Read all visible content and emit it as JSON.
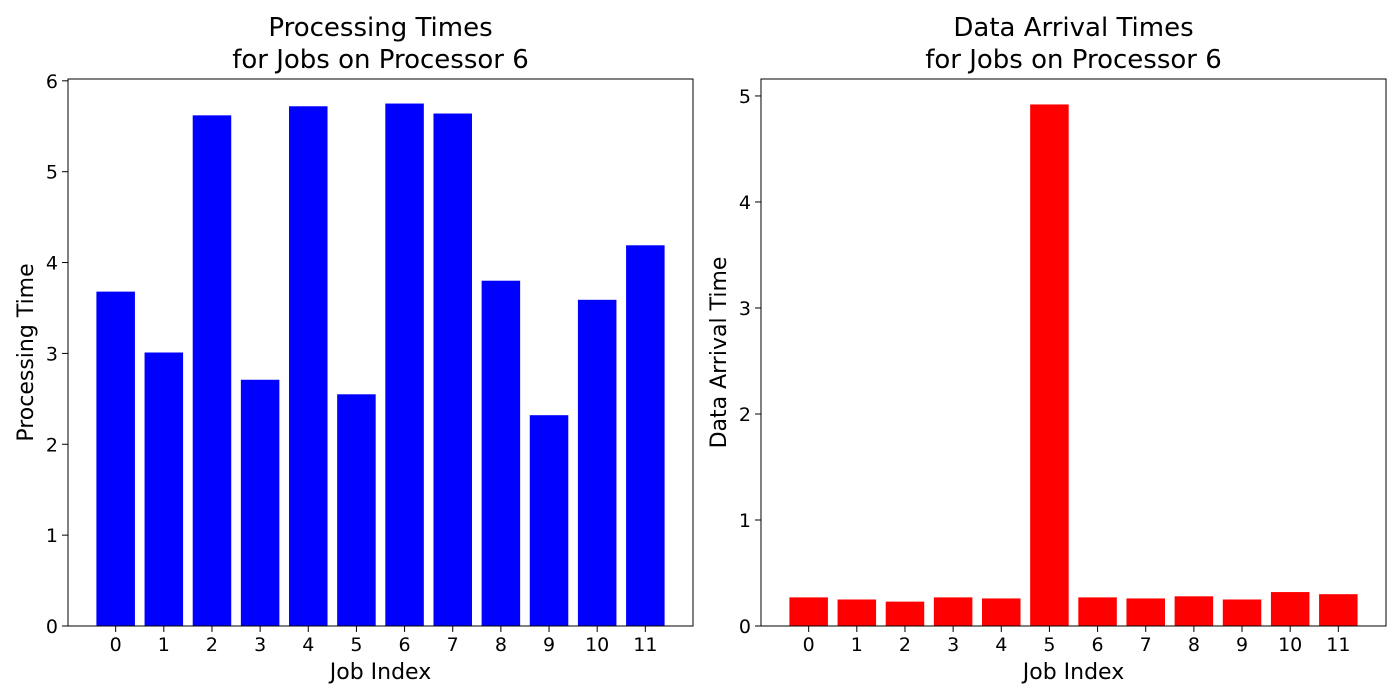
{
  "colors": {
    "left_bar": "#0000ff",
    "right_bar": "#ff0000",
    "axis": "#000000"
  },
  "chart_data": [
    {
      "type": "bar",
      "title": [
        "Processing Times",
        "for Jobs on Processor 6"
      ],
      "xlabel": "Job Index",
      "ylabel": "Processing Time",
      "categories": [
        "0",
        "1",
        "2",
        "3",
        "4",
        "5",
        "6",
        "7",
        "8",
        "9",
        "10",
        "11"
      ],
      "values": [
        3.68,
        3.01,
        5.62,
        2.71,
        5.72,
        2.55,
        5.75,
        5.64,
        3.8,
        2.32,
        3.59,
        4.19
      ],
      "ylim": [
        0,
        6.02
      ],
      "yticks": [
        0,
        1,
        2,
        3,
        4,
        5,
        6
      ],
      "ytick_labels": [
        "0",
        "1",
        "2",
        "3",
        "4",
        "5",
        "6"
      ],
      "grid": false,
      "color": "#0000ff"
    },
    {
      "type": "bar",
      "title": [
        "Data Arrival Times",
        "for Jobs on Processor 6"
      ],
      "xlabel": "Job Index",
      "ylabel": "Data Arrival Time",
      "categories": [
        "0",
        "1",
        "2",
        "3",
        "4",
        "5",
        "6",
        "7",
        "8",
        "9",
        "10",
        "11"
      ],
      "values": [
        0.27,
        0.25,
        0.23,
        0.27,
        0.26,
        4.92,
        0.27,
        0.26,
        0.28,
        0.25,
        0.32,
        0.3
      ],
      "ylim": [
        0,
        5.16
      ],
      "yticks": [
        0,
        1,
        2,
        3,
        4,
        5
      ],
      "ytick_labels": [
        "0",
        "1",
        "2",
        "3",
        "4",
        "5"
      ],
      "grid": false,
      "color": "#ff0000"
    }
  ]
}
